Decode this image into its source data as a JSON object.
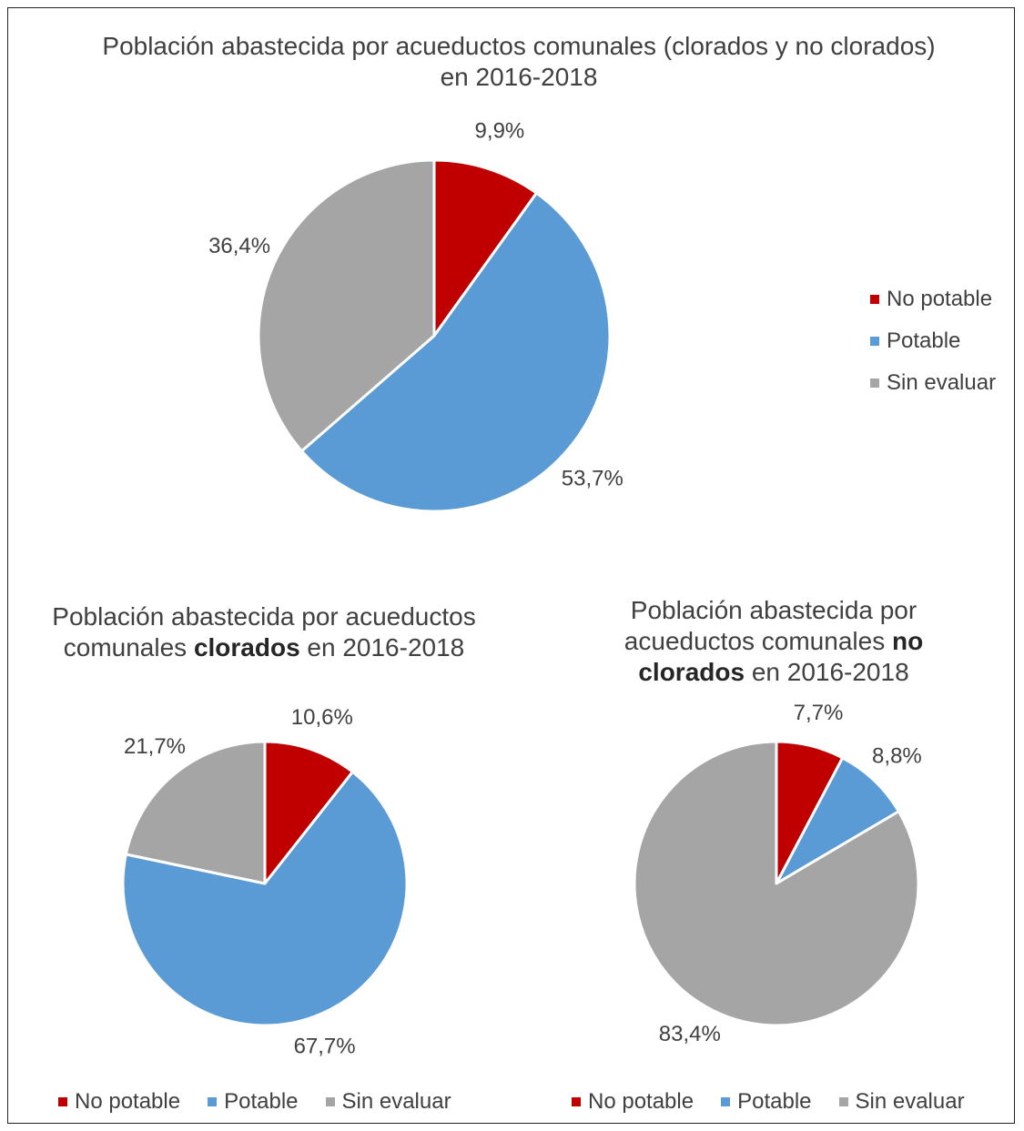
{
  "chart_data": [
    {
      "type": "pie",
      "title_parts": [
        {
          "text": "Población abastecida por acueductos comunales (clorados y no clorados) en 2016-2018",
          "bold": false
        }
      ],
      "categories": [
        "No potable",
        "Potable",
        "Sin evaluar"
      ],
      "values": [
        9.9,
        53.7,
        36.4
      ],
      "labels": [
        "9,9%",
        "53,7%",
        "36,4%"
      ],
      "colors": [
        "#c00000",
        "#5b9bd5",
        "#a5a5a5"
      ],
      "legend": "right"
    },
    {
      "type": "pie",
      "title_parts": [
        {
          "text": "Población abastecida por acueductos comunales ",
          "bold": false
        },
        {
          "text": "clorados",
          "bold": true
        },
        {
          "text": " en 2016-2018",
          "bold": false
        }
      ],
      "categories": [
        "No potable",
        "Potable",
        "Sin evaluar"
      ],
      "values": [
        10.6,
        67.7,
        21.7
      ],
      "labels": [
        "10,6%",
        "67,7%",
        "21,7%"
      ],
      "colors": [
        "#c00000",
        "#5b9bd5",
        "#a5a5a5"
      ],
      "legend": "bottom"
    },
    {
      "type": "pie",
      "title_parts": [
        {
          "text": "Población abastecida por acueductos comunales ",
          "bold": false
        },
        {
          "text": "no clorados",
          "bold": true
        },
        {
          "text": " en 2016-2018",
          "bold": false
        }
      ],
      "categories": [
        "No potable",
        "Potable",
        "Sin evaluar"
      ],
      "values": [
        7.7,
        8.8,
        83.4
      ],
      "labels": [
        "7,7%",
        "8,8%",
        "83,4%"
      ],
      "colors": [
        "#c00000",
        "#5b9bd5",
        "#a5a5a5"
      ],
      "legend": "bottom"
    }
  ]
}
